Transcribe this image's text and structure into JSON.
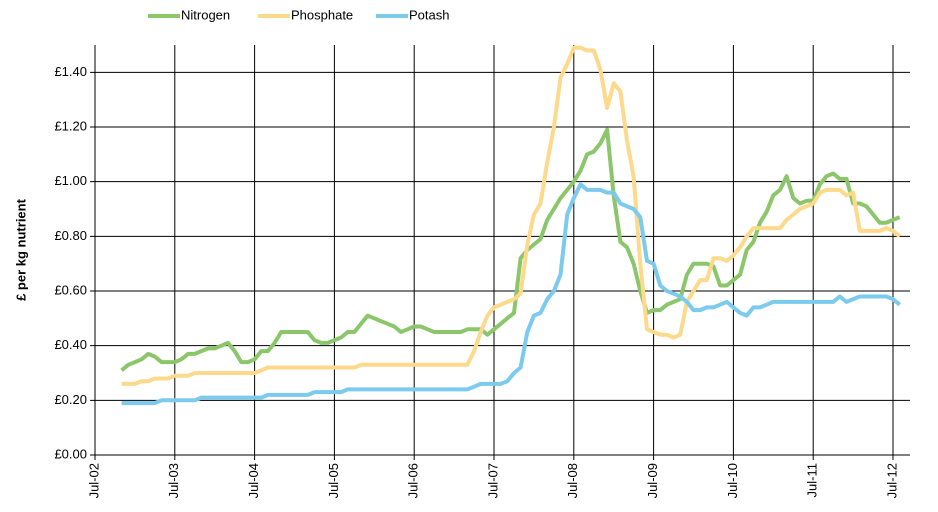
{
  "chart_data": {
    "type": "line",
    "y_label": "£ per kg nutrient",
    "categories": [
      "Jul-02",
      null,
      null,
      null,
      null,
      null,
      null,
      null,
      null,
      null,
      null,
      null,
      "Jul-03",
      null,
      null,
      null,
      null,
      null,
      null,
      null,
      null,
      null,
      null,
      null,
      "Jul-04",
      null,
      null,
      null,
      null,
      null,
      null,
      null,
      null,
      null,
      null,
      null,
      "Jul-05",
      null,
      null,
      null,
      null,
      null,
      null,
      null,
      null,
      null,
      null,
      null,
      "Jul-06",
      null,
      null,
      null,
      null,
      null,
      null,
      null,
      null,
      null,
      null,
      null,
      "Jul-07",
      null,
      null,
      null,
      null,
      null,
      null,
      null,
      null,
      null,
      null,
      null,
      "Jul-08",
      null,
      null,
      null,
      null,
      null,
      null,
      null,
      null,
      null,
      null,
      null,
      "Jul-09",
      null,
      null,
      null,
      null,
      null,
      null,
      null,
      null,
      null,
      null,
      null,
      "Jul-10",
      null,
      null,
      null,
      null,
      null,
      null,
      null,
      null,
      null,
      null,
      null,
      "Jul-11",
      null,
      null,
      null,
      null,
      null,
      null,
      null,
      null,
      null,
      null,
      null,
      "Jul-12",
      null
    ],
    "series": [
      {
        "name": "Nitrogen",
        "color": "#8cc66b",
        "values": [
          null,
          null,
          null,
          null,
          0.31,
          0.33,
          0.34,
          0.35,
          0.37,
          0.36,
          0.34,
          0.34,
          0.34,
          0.35,
          0.37,
          0.37,
          0.38,
          0.39,
          0.39,
          0.4,
          0.41,
          0.38,
          0.34,
          0.34,
          0.35,
          0.38,
          0.38,
          0.41,
          0.45,
          0.45,
          0.45,
          0.45,
          0.45,
          0.42,
          0.41,
          0.41,
          0.42,
          0.43,
          0.45,
          0.45,
          0.48,
          0.51,
          0.5,
          0.49,
          0.48,
          0.47,
          0.45,
          0.46,
          0.47,
          0.47,
          0.46,
          0.45,
          0.45,
          0.45,
          0.45,
          0.45,
          0.46,
          0.46,
          0.46,
          0.44,
          0.46,
          0.48,
          0.5,
          0.52,
          0.72,
          0.75,
          0.77,
          0.79,
          0.86,
          0.9,
          0.94,
          0.97,
          1.0,
          1.04,
          1.1,
          1.11,
          1.14,
          1.19,
          0.95,
          0.78,
          0.76,
          0.7,
          0.6,
          0.52,
          0.53,
          0.53,
          0.55,
          0.56,
          0.57,
          0.66,
          0.7,
          0.7,
          0.7,
          0.69,
          0.62,
          0.62,
          0.64,
          0.66,
          0.75,
          0.78,
          0.85,
          0.89,
          0.95,
          0.97,
          1.02,
          0.94,
          0.92,
          0.93,
          0.93,
          0.99,
          1.02,
          1.03,
          1.01,
          1.01,
          0.92,
          0.92,
          0.91,
          0.88,
          0.85,
          0.85,
          0.86,
          0.87
        ]
      },
      {
        "name": "Phosphate",
        "color": "#fdd98c",
        "values": [
          null,
          null,
          null,
          null,
          0.26,
          0.26,
          0.26,
          0.27,
          0.27,
          0.28,
          0.28,
          0.28,
          0.29,
          0.29,
          0.29,
          0.3,
          0.3,
          0.3,
          0.3,
          0.3,
          0.3,
          0.3,
          0.3,
          0.3,
          0.3,
          0.31,
          0.32,
          0.32,
          0.32,
          0.32,
          0.32,
          0.32,
          0.32,
          0.32,
          0.32,
          0.32,
          0.32,
          0.32,
          0.32,
          0.32,
          0.33,
          0.33,
          0.33,
          0.33,
          0.33,
          0.33,
          0.33,
          0.33,
          0.33,
          0.33,
          0.33,
          0.33,
          0.33,
          0.33,
          0.33,
          0.33,
          0.33,
          0.38,
          0.45,
          0.51,
          0.54,
          0.55,
          0.56,
          0.57,
          0.59,
          0.77,
          0.88,
          0.92,
          1.07,
          1.2,
          1.38,
          1.43,
          1.49,
          1.49,
          1.48,
          1.48,
          1.41,
          1.27,
          1.36,
          1.33,
          1.15,
          1.02,
          0.7,
          0.46,
          0.45,
          0.44,
          0.44,
          0.43,
          0.44,
          0.56,
          0.6,
          0.64,
          0.64,
          0.72,
          0.72,
          0.71,
          0.73,
          0.76,
          0.8,
          0.83,
          0.83,
          0.83,
          0.83,
          0.83,
          0.86,
          0.88,
          0.9,
          0.91,
          0.92,
          0.96,
          0.97,
          0.97,
          0.97,
          0.95,
          0.96,
          0.82,
          0.82,
          0.82,
          0.82,
          0.83,
          0.82,
          0.8
        ]
      },
      {
        "name": "Potash",
        "color": "#7ccaee",
        "values": [
          null,
          null,
          null,
          null,
          0.19,
          0.19,
          0.19,
          0.19,
          0.19,
          0.19,
          0.2,
          0.2,
          0.2,
          0.2,
          0.2,
          0.2,
          0.21,
          0.21,
          0.21,
          0.21,
          0.21,
          0.21,
          0.21,
          0.21,
          0.21,
          0.21,
          0.22,
          0.22,
          0.22,
          0.22,
          0.22,
          0.22,
          0.22,
          0.23,
          0.23,
          0.23,
          0.23,
          0.23,
          0.24,
          0.24,
          0.24,
          0.24,
          0.24,
          0.24,
          0.24,
          0.24,
          0.24,
          0.24,
          0.24,
          0.24,
          0.24,
          0.24,
          0.24,
          0.24,
          0.24,
          0.24,
          0.24,
          0.25,
          0.26,
          0.26,
          0.26,
          0.26,
          0.27,
          0.3,
          0.32,
          0.45,
          0.51,
          0.52,
          0.57,
          0.6,
          0.66,
          0.88,
          0.94,
          0.99,
          0.97,
          0.97,
          0.97,
          0.96,
          0.96,
          0.92,
          0.91,
          0.9,
          0.87,
          0.71,
          0.7,
          0.62,
          0.6,
          0.59,
          0.58,
          0.56,
          0.53,
          0.53,
          0.54,
          0.54,
          0.55,
          0.56,
          0.54,
          0.52,
          0.51,
          0.54,
          0.54,
          0.55,
          0.56,
          0.56,
          0.56,
          0.56,
          0.56,
          0.56,
          0.56,
          0.56,
          0.56,
          0.56,
          0.58,
          0.56,
          0.57,
          0.58,
          0.58,
          0.58,
          0.58,
          0.58,
          0.57,
          0.55
        ]
      }
    ],
    "ylim": [
      0,
      1.5
    ],
    "yticks": [
      {
        "value": 0,
        "label": "£0.00"
      },
      {
        "value": 0.2,
        "label": "£0.20"
      },
      {
        "value": 0.4,
        "label": "£0.40"
      },
      {
        "value": 0.6,
        "label": "£0.60"
      },
      {
        "value": 0.8,
        "label": "£0.80"
      },
      {
        "value": 1.0,
        "label": "£1.00"
      },
      {
        "value": 1.2,
        "label": "£1.20"
      },
      {
        "value": 1.4,
        "label": "£1.40"
      }
    ],
    "grid": true,
    "legend": "top-left"
  }
}
